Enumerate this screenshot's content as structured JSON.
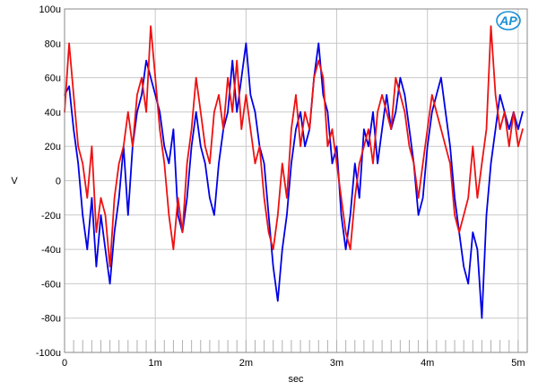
{
  "logo": {
    "text": "AP",
    "color": "#1a8fd6"
  },
  "chart_data": {
    "type": "line",
    "title": "",
    "xlabel": "sec",
    "ylabel": "V",
    "xlim": [
      0,
      0.0051
    ],
    "ylim": [
      -0.0001,
      0.0001
    ],
    "x_ticks": [
      {
        "value": 0,
        "label": "0"
      },
      {
        "value": 0.001,
        "label": "1m"
      },
      {
        "value": 0.002,
        "label": "2m"
      },
      {
        "value": 0.003,
        "label": "3m"
      },
      {
        "value": 0.004,
        "label": "4m"
      },
      {
        "value": 0.005,
        "label": "5m"
      }
    ],
    "y_ticks": [
      {
        "value": 0.0001,
        "label": "100u"
      },
      {
        "value": 8e-05,
        "label": "80u"
      },
      {
        "value": 6e-05,
        "label": "60u"
      },
      {
        "value": 4e-05,
        "label": "40u"
      },
      {
        "value": 2e-05,
        "label": "20u"
      },
      {
        "value": 0,
        "label": "0"
      },
      {
        "value": -2e-05,
        "label": "-20u"
      },
      {
        "value": -4e-05,
        "label": "-40u"
      },
      {
        "value": -6e-05,
        "label": "-60u"
      },
      {
        "value": -8e-05,
        "label": "-80u"
      },
      {
        "value": -0.0001,
        "label": "-100u"
      }
    ],
    "grid": true,
    "series": [
      {
        "color": "#0000e6",
        "x": [
          0,
          5e-05,
          0.0001,
          0.00015,
          0.0002,
          0.00025,
          0.0003,
          0.00035,
          0.0004,
          0.00045,
          0.0005,
          0.00055,
          0.0006,
          0.00065,
          0.0007,
          0.00075,
          0.0008,
          0.00085,
          0.0009,
          0.00095,
          0.001,
          0.00105,
          0.0011,
          0.00115,
          0.0012,
          0.00125,
          0.0013,
          0.00135,
          0.0014,
          0.00145,
          0.0015,
          0.00155,
          0.0016,
          0.00165,
          0.0017,
          0.00175,
          0.0018,
          0.00185,
          0.0019,
          0.00195,
          0.002,
          0.00205,
          0.0021,
          0.00215,
          0.0022,
          0.00225,
          0.0023,
          0.00235,
          0.0024,
          0.00245,
          0.0025,
          0.00255,
          0.0026,
          0.00265,
          0.0027,
          0.00275,
          0.0028,
          0.00285,
          0.0029,
          0.00295,
          0.003,
          0.00305,
          0.0031,
          0.00315,
          0.0032,
          0.00325,
          0.0033,
          0.00335,
          0.0034,
          0.00345,
          0.0035,
          0.00355,
          0.0036,
          0.00365,
          0.0037,
          0.00375,
          0.0038,
          0.00385,
          0.0039,
          0.00395,
          0.004,
          0.00405,
          0.0041,
          0.00415,
          0.0042,
          0.00425,
          0.0043,
          0.00435,
          0.0044,
          0.00445,
          0.0045,
          0.00455,
          0.0046,
          0.00465,
          0.0047,
          0.00475,
          0.0048,
          0.00485,
          0.0049,
          0.00495,
          0.005,
          0.00505
        ],
        "y": [
          5e-05,
          5.5e-05,
          3e-05,
          1e-05,
          -2e-05,
          -4e-05,
          -1e-05,
          -5e-05,
          -2e-05,
          -4e-05,
          -6e-05,
          -3e-05,
          -1e-05,
          2e-05,
          -2e-05,
          2e-05,
          4e-05,
          5e-05,
          7e-05,
          6e-05,
          5e-05,
          4e-05,
          2e-05,
          1e-05,
          3e-05,
          -2e-05,
          -3e-05,
          -1e-05,
          2e-05,
          4e-05,
          2e-05,
          1e-05,
          -1e-05,
          -2e-05,
          1e-05,
          3e-05,
          4e-05,
          7e-05,
          4e-05,
          6e-05,
          8e-05,
          5e-05,
          4e-05,
          2e-05,
          1e-05,
          -2e-05,
          -5e-05,
          -7e-05,
          -4e-05,
          -2e-05,
          1e-05,
          3e-05,
          4e-05,
          2e-05,
          3e-05,
          6e-05,
          8e-05,
          5e-05,
          4e-05,
          1e-05,
          2e-05,
          -2e-05,
          -4e-05,
          -2e-05,
          1e-05,
          -1e-05,
          3e-05,
          2e-05,
          4e-05,
          1e-05,
          3e-05,
          5e-05,
          3e-05,
          4e-05,
          6e-05,
          5e-05,
          3e-05,
          1e-05,
          -2e-05,
          -1e-05,
          2e-05,
          4e-05,
          5e-05,
          6e-05,
          4e-05,
          2e-05,
          -1e-05,
          -3e-05,
          -5e-05,
          -6e-05,
          -3e-05,
          -4e-05,
          -8e-05,
          -2e-05,
          1e-05,
          3e-05,
          5e-05,
          4e-05,
          3e-05,
          4e-05,
          3e-05,
          4e-05
        ]
      },
      {
        "color": "#ee1111",
        "x": [
          0,
          5e-05,
          0.0001,
          0.00015,
          0.0002,
          0.00025,
          0.0003,
          0.00035,
          0.0004,
          0.00045,
          0.0005,
          0.00055,
          0.0006,
          0.00065,
          0.0007,
          0.00075,
          0.0008,
          0.00085,
          0.0009,
          0.00095,
          0.001,
          0.00105,
          0.0011,
          0.00115,
          0.0012,
          0.00125,
          0.0013,
          0.00135,
          0.0014,
          0.00145,
          0.0015,
          0.00155,
          0.0016,
          0.00165,
          0.0017,
          0.00175,
          0.0018,
          0.00185,
          0.0019,
          0.00195,
          0.002,
          0.00205,
          0.0021,
          0.00215,
          0.0022,
          0.00225,
          0.0023,
          0.00235,
          0.0024,
          0.00245,
          0.0025,
          0.00255,
          0.0026,
          0.00265,
          0.0027,
          0.00275,
          0.0028,
          0.00285,
          0.0029,
          0.00295,
          0.003,
          0.00305,
          0.0031,
          0.00315,
          0.0032,
          0.00325,
          0.0033,
          0.00335,
          0.0034,
          0.00345,
          0.0035,
          0.00355,
          0.0036,
          0.00365,
          0.0037,
          0.00375,
          0.0038,
          0.00385,
          0.0039,
          0.00395,
          0.004,
          0.00405,
          0.0041,
          0.00415,
          0.0042,
          0.00425,
          0.0043,
          0.00435,
          0.0044,
          0.00445,
          0.0045,
          0.00455,
          0.0046,
          0.00465,
          0.0047,
          0.00475,
          0.0048,
          0.00485,
          0.0049,
          0.00495,
          0.005,
          0.00505
        ],
        "y": [
          4e-05,
          8e-05,
          5e-05,
          2e-05,
          1e-05,
          -1e-05,
          2e-05,
          -3e-05,
          -1e-05,
          -2e-05,
          -5e-05,
          -1e-05,
          1e-05,
          2e-05,
          4e-05,
          2e-05,
          5e-05,
          6e-05,
          4e-05,
          9e-05,
          6e-05,
          3e-05,
          1e-05,
          -2e-05,
          -4e-05,
          -1e-05,
          -3e-05,
          1e-05,
          3e-05,
          6e-05,
          4e-05,
          2e-05,
          1e-05,
          4e-05,
          5e-05,
          3e-05,
          6e-05,
          4e-05,
          7e-05,
          3e-05,
          5e-05,
          3e-05,
          1e-05,
          2e-05,
          -1e-05,
          -3e-05,
          -4e-05,
          -2e-05,
          1e-05,
          -1e-05,
          3e-05,
          5e-05,
          2e-05,
          4e-05,
          3e-05,
          6e-05,
          7e-05,
          6e-05,
          2e-05,
          3e-05,
          1e-05,
          -1e-05,
          -3e-05,
          -4e-05,
          -1e-05,
          1e-05,
          2e-05,
          3e-05,
          1e-05,
          4e-05,
          5e-05,
          4e-05,
          3e-05,
          6e-05,
          5e-05,
          4e-05,
          2e-05,
          1e-05,
          -1e-05,
          1e-05,
          3e-05,
          5e-05,
          4e-05,
          3e-05,
          2e-05,
          1e-05,
          -2e-05,
          -3e-05,
          -2e-05,
          -1e-05,
          2e-05,
          -1e-05,
          1e-05,
          3e-05,
          9e-05,
          5e-05,
          3e-05,
          4e-05,
          2e-05,
          4e-05,
          2e-05,
          3e-05
        ]
      }
    ]
  }
}
